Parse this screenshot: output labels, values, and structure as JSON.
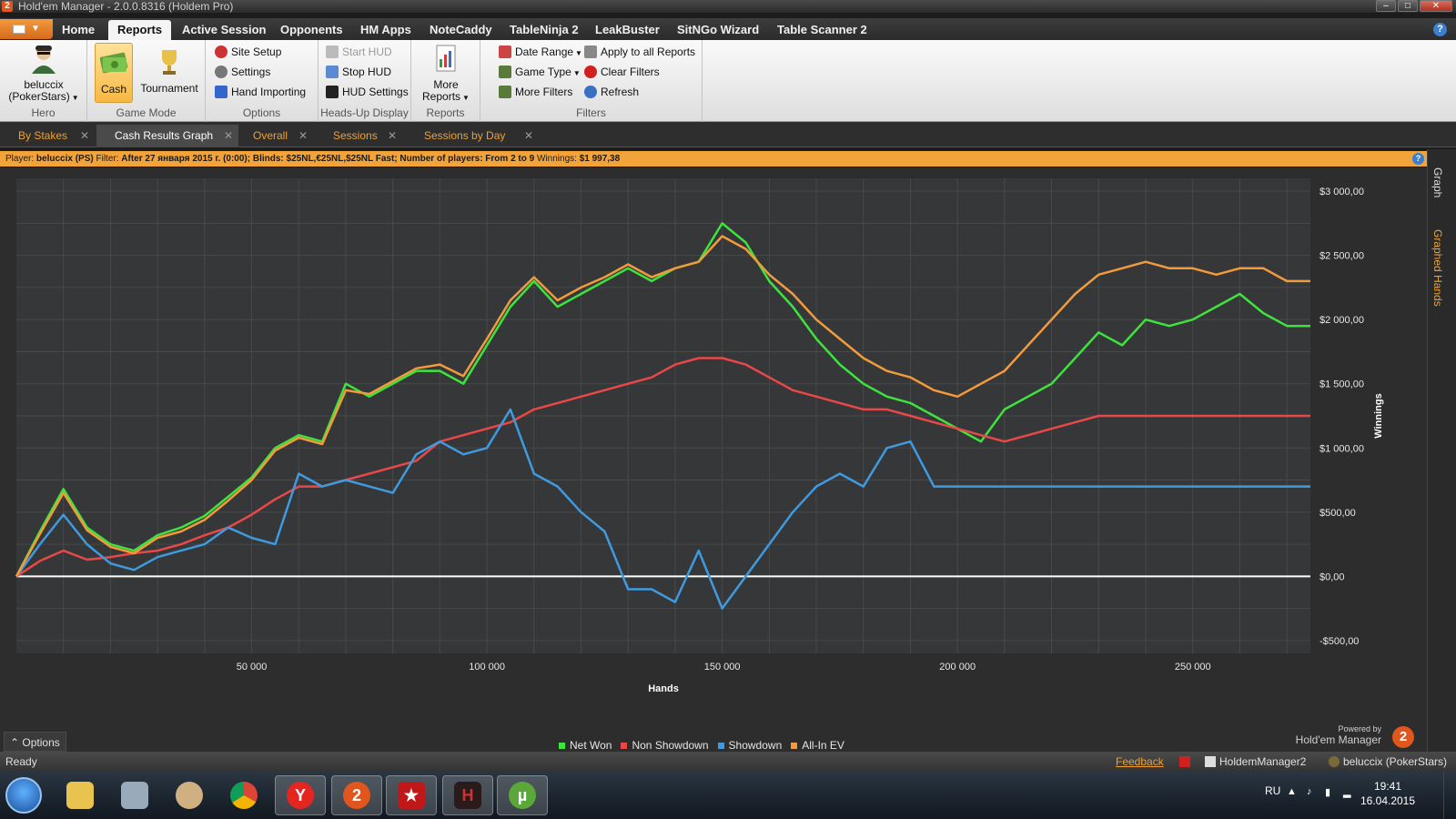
{
  "window": {
    "icon": "2",
    "title": "Hold'em Manager - 2.0.0.8316 (Holdem Pro)"
  },
  "ribbon_tabs": [
    "Home",
    "Reports",
    "Active Session",
    "Opponents",
    "HM Apps",
    "NoteCaddy",
    "TableNinja 2",
    "LeakBuster",
    "SitNGo Wizard",
    "Table Scanner 2"
  ],
  "active_ribbon_tab": "Reports",
  "ribbon": {
    "hero": {
      "name": "beluccix",
      "site": "(PokerStars)",
      "group": "Hero"
    },
    "game_mode": {
      "cash": "Cash",
      "tournament": "Tournament",
      "group": "Game Mode"
    },
    "options": {
      "site_setup": "Site Setup",
      "settings": "Settings",
      "hand_importing": "Hand Importing",
      "group": "Options"
    },
    "hud": {
      "start": "Start HUD",
      "stop": "Stop HUD",
      "settings": "HUD Settings",
      "group": "Heads-Up Display"
    },
    "reports": {
      "more_line1": "More",
      "more_line2": "Reports",
      "group": "Reports"
    },
    "filters": {
      "date_range": "Date Range",
      "game_type": "Game Type",
      "more_filters": "More Filters",
      "apply_all": "Apply to all Reports",
      "clear": "Clear Filters",
      "refresh": "Refresh",
      "group": "Filters"
    }
  },
  "doc_tabs": [
    "By Stakes",
    "Cash Results Graph",
    "Overall",
    "Sessions",
    "Sessions by Day"
  ],
  "active_doc_tab": "Cash Results Graph",
  "filter_bar": {
    "player_label": "Player:",
    "player": "beluccix (PS)",
    "filter_label": "Filter:",
    "filter": "After 27 января 2015 г. (0:00); Blinds: $25NL,€25NL,$25NL Fast; Number of players: From 2 to 9",
    "winnings_label": "Winnings:",
    "winnings": "$1 997,38"
  },
  "side_tabs": [
    "Graph",
    "Graphed Hands"
  ],
  "chart_data": {
    "type": "line",
    "xlabel": "Hands",
    "ylabel": "Winnings",
    "xlim": [
      0,
      275000
    ],
    "ylim": [
      -600,
      3100
    ],
    "x_ticks": [
      50000,
      100000,
      150000,
      200000,
      250000
    ],
    "x_tick_labels": [
      "50 000",
      "100 000",
      "150 000",
      "200 000",
      "250 000"
    ],
    "y_ticks": [
      -500,
      0,
      500,
      1000,
      1500,
      2000,
      2500,
      3000
    ],
    "y_tick_labels": [
      "-$500,00",
      "$0,00",
      "$500,00",
      "$1 000,00",
      "$1 500,00",
      "$2 000,00",
      "$2 500,00",
      "$3 000,00"
    ],
    "grid": true,
    "legend_position": "bottom",
    "x": [
      0,
      5000,
      10000,
      15000,
      20000,
      25000,
      30000,
      35000,
      40000,
      45000,
      50000,
      55000,
      60000,
      65000,
      70000,
      75000,
      80000,
      85000,
      90000,
      95000,
      100000,
      105000,
      110000,
      115000,
      120000,
      125000,
      130000,
      135000,
      140000,
      145000,
      150000,
      155000,
      160000,
      165000,
      170000,
      175000,
      180000,
      185000,
      190000,
      195000,
      200000,
      205000,
      210000,
      215000,
      220000,
      225000,
      230000,
      235000,
      240000,
      245000,
      250000,
      255000,
      260000,
      265000,
      270000,
      275000
    ],
    "series": [
      {
        "name": "Net Won",
        "color": "#3ee33e",
        "values": [
          0,
          350,
          680,
          380,
          250,
          200,
          320,
          380,
          470,
          620,
          770,
          1000,
          1100,
          1050,
          1500,
          1400,
          1500,
          1600,
          1600,
          1500,
          1800,
          2100,
          2300,
          2100,
          2200,
          2300,
          2400,
          2300,
          2400,
          2450,
          2750,
          2600,
          2300,
          2100,
          1850,
          1650,
          1500,
          1400,
          1350,
          1250,
          1150,
          1050,
          1300,
          1400,
          1500,
          1700,
          1900,
          1800,
          2000,
          1950,
          2000,
          2100,
          2200,
          2050,
          1950,
          1950
        ]
      },
      {
        "name": "Non Showdown",
        "color": "#e84848",
        "values": [
          0,
          120,
          200,
          130,
          150,
          180,
          200,
          250,
          320,
          380,
          480,
          600,
          700,
          700,
          750,
          800,
          850,
          900,
          1050,
          1100,
          1150,
          1200,
          1300,
          1350,
          1400,
          1450,
          1500,
          1550,
          1650,
          1700,
          1700,
          1650,
          1550,
          1450,
          1400,
          1350,
          1300,
          1300,
          1250,
          1200,
          1150,
          1100,
          1050,
          1100,
          1150,
          1200,
          1250,
          1250,
          1250,
          1250,
          1250,
          1250,
          1250,
          1250,
          1250,
          1250
        ]
      },
      {
        "name": "Showdown",
        "color": "#3f9ae0",
        "values": [
          0,
          250,
          480,
          250,
          100,
          50,
          150,
          200,
          250,
          380,
          300,
          250,
          800,
          700,
          750,
          700,
          650,
          950,
          1050,
          950,
          1000,
          1300,
          800,
          700,
          500,
          350,
          -100,
          -100,
          -200,
          200,
          -250,
          0,
          250,
          500,
          700,
          800,
          700,
          1000,
          1050,
          700,
          700,
          700,
          700,
          700,
          700,
          700,
          700,
          700,
          700,
          700,
          700,
          700,
          700,
          700,
          700,
          700
        ]
      },
      {
        "name": "All-In EV",
        "color": "#f39a3c",
        "values": [
          0,
          330,
          650,
          360,
          230,
          180,
          300,
          350,
          440,
          590,
          750,
          980,
          1080,
          1030,
          1450,
          1420,
          1520,
          1620,
          1650,
          1560,
          1850,
          2150,
          2330,
          2150,
          2250,
          2330,
          2430,
          2330,
          2400,
          2450,
          2650,
          2550,
          2350,
          2200,
          2000,
          1850,
          1700,
          1600,
          1550,
          1450,
          1400,
          1500,
          1600,
          1800,
          2000,
          2200,
          2350,
          2400,
          2450,
          2400,
          2400,
          2350,
          2400,
          2400,
          2300,
          2300
        ]
      }
    ]
  },
  "legend_items": [
    "Net Won",
    "Non Showdown",
    "Showdown",
    "All-In EV"
  ],
  "options_label": "Options",
  "powered_by": {
    "line1": "Powered by",
    "line2": "Hold'em Manager",
    "badge": "2"
  },
  "status": {
    "ready": "Ready",
    "feedback": "Feedback",
    "database": "HoldemManager2",
    "player": "beluccix (PokerStars)"
  },
  "taskbar": {
    "lang": "RU",
    "time": "19:41",
    "date": "16.04.2015"
  }
}
